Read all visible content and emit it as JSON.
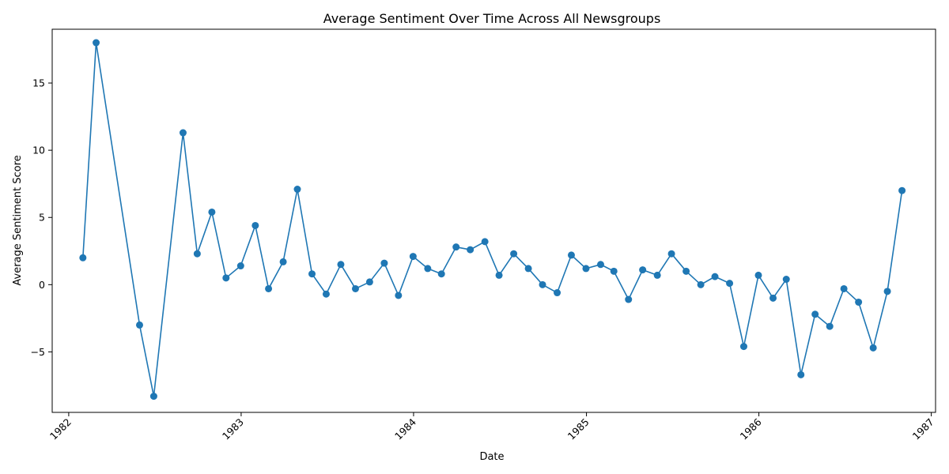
{
  "chart_data": {
    "type": "line",
    "title": "Average Sentiment Over Time Across All Newsgroups",
    "xlabel": "Date",
    "ylabel": "Average Sentiment Score",
    "xlim": [
      "1981-11-27",
      "1987-01-10"
    ],
    "ylim": [
      -9.5,
      19.0
    ],
    "x_ticks": [
      {
        "date": "1982-01-01",
        "label": "1982"
      },
      {
        "date": "1983-01-01",
        "label": "1983"
      },
      {
        "date": "1984-01-01",
        "label": "1984"
      },
      {
        "date": "1985-01-01",
        "label": "1985"
      },
      {
        "date": "1986-01-01",
        "label": "1986"
      },
      {
        "date": "1987-01-01",
        "label": "1987"
      }
    ],
    "y_ticks": [
      {
        "value": -5,
        "label": "−5"
      },
      {
        "value": 0,
        "label": "0"
      },
      {
        "value": 5,
        "label": "5"
      },
      {
        "value": 10,
        "label": "10"
      },
      {
        "value": 15,
        "label": "15"
      }
    ],
    "grid": false,
    "legend": "none",
    "line_color": "#1f77b4",
    "marker": "circle",
    "series": [
      {
        "points": [
          {
            "x": "1982-01-31",
            "y": 2.0
          },
          {
            "x": "1982-02-28",
            "y": 18.0
          },
          {
            "x": "1982-05-31",
            "y": -3.0
          },
          {
            "x": "1982-06-30",
            "y": -8.3
          },
          {
            "x": "1982-08-31",
            "y": 11.3
          },
          {
            "x": "1982-09-30",
            "y": 2.3
          },
          {
            "x": "1982-10-31",
            "y": 5.4
          },
          {
            "x": "1982-11-30",
            "y": 0.5
          },
          {
            "x": "1982-12-31",
            "y": 1.4
          },
          {
            "x": "1983-01-31",
            "y": 4.4
          },
          {
            "x": "1983-02-28",
            "y": -0.3
          },
          {
            "x": "1983-03-31",
            "y": 1.7
          },
          {
            "x": "1983-04-30",
            "y": 7.1
          },
          {
            "x": "1983-05-31",
            "y": 0.8
          },
          {
            "x": "1983-06-30",
            "y": -0.7
          },
          {
            "x": "1983-07-31",
            "y": 1.5
          },
          {
            "x": "1983-08-31",
            "y": -0.3
          },
          {
            "x": "1983-09-30",
            "y": 0.2
          },
          {
            "x": "1983-10-31",
            "y": 1.6
          },
          {
            "x": "1983-11-30",
            "y": -0.8
          },
          {
            "x": "1983-12-31",
            "y": 2.1
          },
          {
            "x": "1984-01-31",
            "y": 1.2
          },
          {
            "x": "1984-02-29",
            "y": 0.8
          },
          {
            "x": "1984-03-31",
            "y": 2.8
          },
          {
            "x": "1984-04-30",
            "y": 2.6
          },
          {
            "x": "1984-05-31",
            "y": 3.2
          },
          {
            "x": "1984-06-30",
            "y": 0.7
          },
          {
            "x": "1984-07-31",
            "y": 2.3
          },
          {
            "x": "1984-08-31",
            "y": 1.2
          },
          {
            "x": "1984-09-30",
            "y": 0.0
          },
          {
            "x": "1984-10-31",
            "y": -0.6
          },
          {
            "x": "1984-11-30",
            "y": 2.2
          },
          {
            "x": "1984-12-31",
            "y": 1.2
          },
          {
            "x": "1985-01-31",
            "y": 1.5
          },
          {
            "x": "1985-02-28",
            "y": 1.0
          },
          {
            "x": "1985-03-31",
            "y": -1.1
          },
          {
            "x": "1985-04-30",
            "y": 1.1
          },
          {
            "x": "1985-05-31",
            "y": 0.7
          },
          {
            "x": "1985-06-30",
            "y": 2.3
          },
          {
            "x": "1985-07-31",
            "y": 1.0
          },
          {
            "x": "1985-08-31",
            "y": 0.0
          },
          {
            "x": "1985-09-30",
            "y": 0.6
          },
          {
            "x": "1985-10-31",
            "y": 0.1
          },
          {
            "x": "1985-11-30",
            "y": -4.6
          },
          {
            "x": "1985-12-31",
            "y": 0.7
          },
          {
            "x": "1986-01-31",
            "y": -1.0
          },
          {
            "x": "1986-02-28",
            "y": 0.4
          },
          {
            "x": "1986-03-31",
            "y": -6.7
          },
          {
            "x": "1986-04-30",
            "y": -2.2
          },
          {
            "x": "1986-05-31",
            "y": -3.1
          },
          {
            "x": "1986-06-30",
            "y": -0.3
          },
          {
            "x": "1986-07-31",
            "y": -1.3
          },
          {
            "x": "1986-08-31",
            "y": -4.7
          },
          {
            "x": "1986-09-30",
            "y": -0.5
          },
          {
            "x": "1986-10-31",
            "y": 7.0
          }
        ]
      }
    ]
  }
}
